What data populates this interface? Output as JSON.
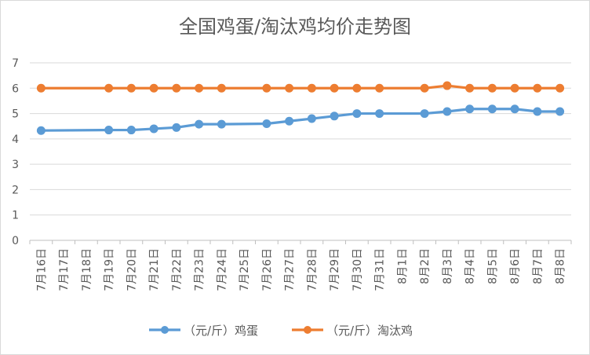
{
  "chart_data": {
    "type": "line",
    "title": "全国鸡蛋/淘汰鸡均价走势图",
    "categories": [
      "7月16日",
      "7月17日",
      "7月18日",
      "7月19日",
      "7月20日",
      "7月21日",
      "7月22日",
      "7月23日",
      "7月24日",
      "7月25日",
      "7月26日",
      "7月27日",
      "7月28日",
      "7月29日",
      "7月30日",
      "7月31日",
      "8月1日",
      "8月2日",
      "8月3日",
      "8月4日",
      "8月5日",
      "8月6日",
      "8月7日",
      "8月8日"
    ],
    "series": [
      {
        "name": "（元/斤）鸡蛋",
        "color": "#5b9bd5",
        "values": [
          4.33,
          null,
          null,
          4.35,
          4.35,
          4.4,
          4.45,
          4.58,
          4.58,
          null,
          4.6,
          4.7,
          4.8,
          4.9,
          5.0,
          5.0,
          null,
          5.0,
          5.08,
          5.18,
          5.18,
          5.18,
          5.08,
          5.08
        ]
      },
      {
        "name": "（元/斤）淘汰鸡",
        "color": "#ed7d31",
        "values": [
          6.0,
          null,
          null,
          6.0,
          6.0,
          6.0,
          6.0,
          6.0,
          6.0,
          null,
          6.0,
          6.0,
          6.0,
          6.0,
          6.0,
          6.0,
          null,
          6.0,
          6.1,
          6.0,
          6.0,
          6.0,
          6.0,
          6.0
        ]
      }
    ],
    "ylim": [
      0,
      7
    ],
    "yticks": [
      0,
      1,
      2,
      3,
      4,
      5,
      6,
      7
    ],
    "grid": true,
    "legend": "bottom"
  }
}
